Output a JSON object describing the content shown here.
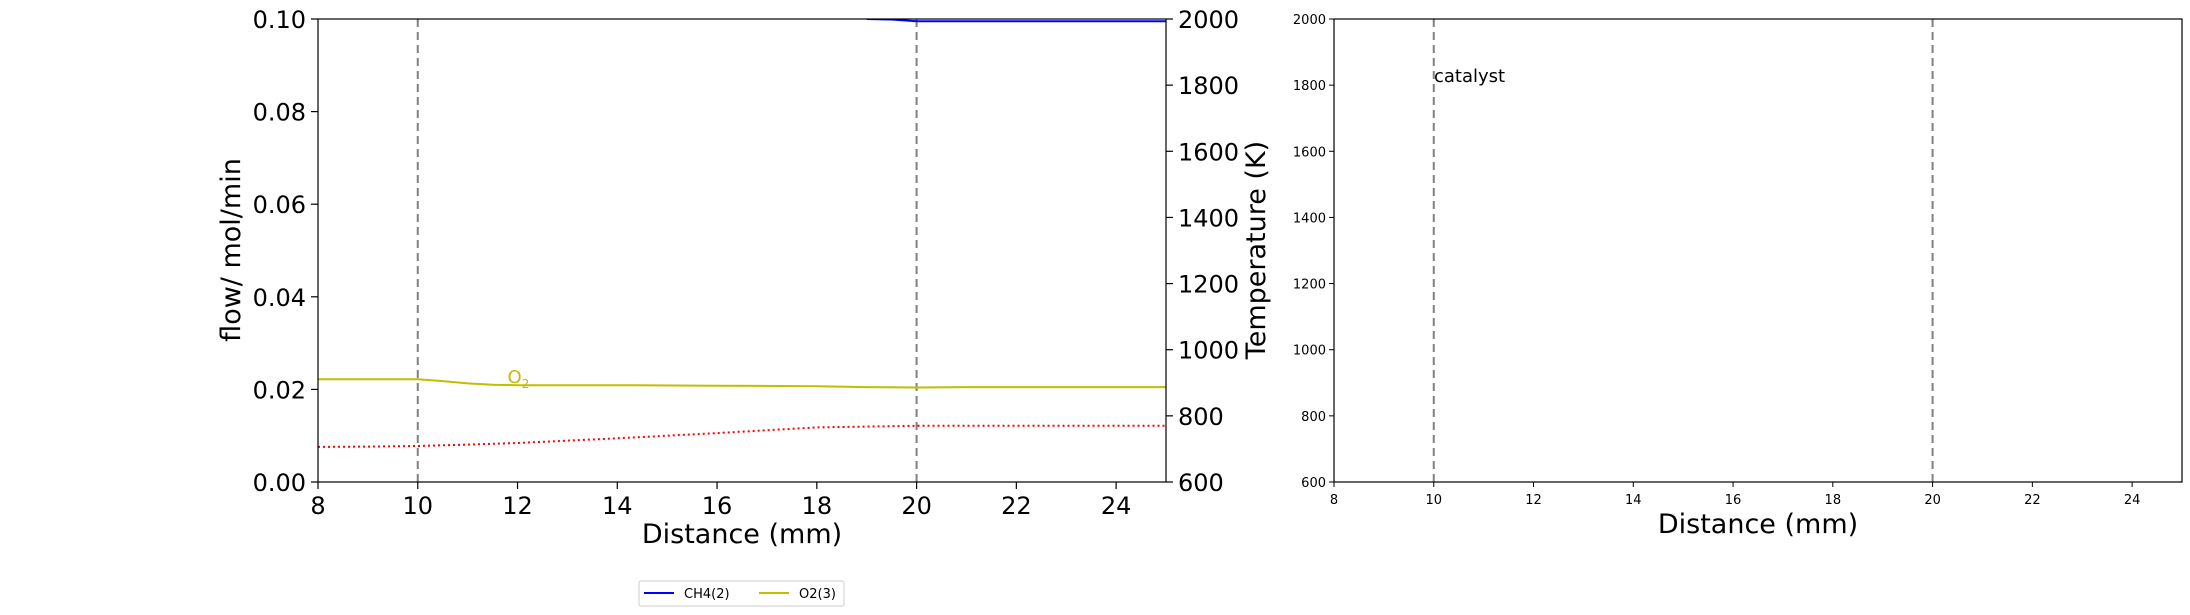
{
  "chart_data": [
    {
      "type": "line",
      "xlabel": "Distance (mm)",
      "ylabel": "flow/ mol/min",
      "ylabel_right": "Temperature (K)",
      "xlim": [
        8,
        25
      ],
      "ylim": [
        0,
        0.1
      ],
      "ylim_right": [
        600,
        2000
      ],
      "x_ticks": [
        "8",
        "10",
        "12",
        "14",
        "16",
        "18",
        "20",
        "22",
        "24"
      ],
      "y_ticks": [
        "0.00",
        "0.02",
        "0.04",
        "0.06",
        "0.08",
        "0.10"
      ],
      "y_ticks_right": [
        "600",
        "800",
        "1000",
        "1200",
        "1400",
        "1600",
        "1800",
        "2000"
      ],
      "vlines": [
        10,
        20
      ],
      "legend_position": "below",
      "series": [
        {
          "name": "CH4(2)",
          "color": "#0000ff",
          "axis": "left",
          "x": [
            19.0,
            19.5,
            20.0,
            21,
            22,
            23,
            24,
            25
          ],
          "y": [
            0.1,
            0.0999,
            0.0995,
            0.0995,
            0.0995,
            0.0995,
            0.0995,
            0.0995
          ]
        },
        {
          "name": "O2(3)",
          "color": "#bfbf00",
          "axis": "left",
          "annotation": "O",
          "annotation_sub": "2",
          "x": [
            8,
            9,
            10,
            10.5,
            11,
            11.5,
            12,
            14,
            16,
            18,
            19,
            20,
            21,
            22,
            24,
            25
          ],
          "y": [
            0.0222,
            0.0222,
            0.0222,
            0.0218,
            0.0213,
            0.021,
            0.0209,
            0.0209,
            0.0208,
            0.0207,
            0.0205,
            0.0204,
            0.0205,
            0.0205,
            0.0205,
            0.0205
          ]
        },
        {
          "color": "#ff0000",
          "axis": "right",
          "style": "dotted",
          "x": [
            8,
            9,
            10,
            11,
            12,
            14,
            16,
            18,
            20,
            21,
            22,
            24,
            25
          ],
          "y": [
            706,
            707,
            709,
            713,
            718,
            732,
            748,
            765,
            770,
            770,
            770,
            770,
            770
          ]
        }
      ]
    },
    {
      "type": "line",
      "xlabel": "Distance (mm)",
      "xlim": [
        8,
        25
      ],
      "ylim": [
        600,
        2000
      ],
      "x_ticks": [
        "8",
        "10",
        "12",
        "14",
        "16",
        "18",
        "20",
        "22",
        "24"
      ],
      "y_ticks": [
        "600",
        "800",
        "1000",
        "1200",
        "1400",
        "1600",
        "1800",
        "2000"
      ],
      "vlines": [
        10,
        20
      ],
      "annotation": "catalyst",
      "series": []
    }
  ],
  "legend": {
    "items": [
      {
        "label": "CH4(2)",
        "color": "#0000ff"
      },
      {
        "label": "O2(3)",
        "color": "#bfbf00"
      }
    ]
  }
}
